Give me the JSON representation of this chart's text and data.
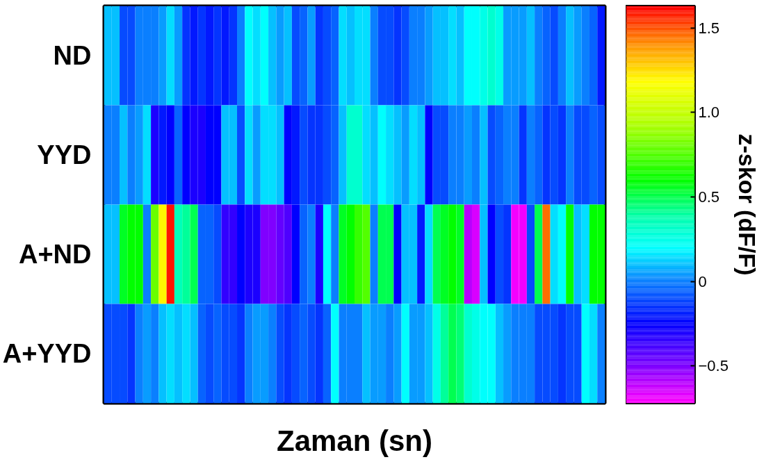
{
  "chart_data": {
    "type": "heatmap",
    "xlabel": "Zaman (sn)",
    "clabel": "z-skor (dF/F)",
    "categories": [
      null,
      null,
      null,
      null,
      null,
      null,
      null,
      null,
      null,
      null,
      null,
      null,
      null,
      null,
      null,
      null,
      null,
      null,
      null,
      null,
      null,
      null,
      null,
      null,
      null,
      null,
      null,
      null,
      null,
      null,
      null,
      null,
      null,
      null,
      null,
      null,
      null,
      null,
      null,
      null,
      null,
      null,
      null,
      null,
      null,
      null,
      null,
      null,
      null,
      null,
      null,
      null,
      null,
      null,
      null,
      null,
      null,
      null,
      null,
      null,
      null,
      null,
      null,
      null
    ],
    "y_categories": [
      "ND",
      "YYD",
      "A+ND",
      "A+YYD"
    ],
    "cells": [
      [
        0.1,
        0.1,
        -0.1,
        -0.1,
        0,
        0,
        0,
        0.05,
        0.15,
        0.05,
        -0.15,
        -0.2,
        -0.15,
        -0.2,
        -0.15,
        -0.2,
        -0.15,
        0,
        0.2,
        0.15,
        0.2,
        0.1,
        0.05,
        0.1,
        -0.1,
        -0.05,
        0.05,
        -0.15,
        -0.1,
        -0.05,
        0.15,
        0.1,
        0.15,
        0.15,
        0,
        -0.1,
        -0.1,
        -0.15,
        -0.1,
        0,
        0,
        0.05,
        0.1,
        0.1,
        0.15,
        0.1,
        0.2,
        0.2,
        0.25,
        0.3,
        0.25,
        0.05,
        0.05,
        0.05,
        0.1,
        0,
        -0.05,
        -0.1,
        0,
        0.1,
        0.05,
        0,
        -0.05,
        -0.2
      ],
      [
        0,
        0,
        0.1,
        0,
        0.05,
        0.15,
        -0.3,
        -0.2,
        -0.25,
        -0.05,
        -0.25,
        -0.3,
        -0.3,
        -0.25,
        -0.25,
        0.1,
        0.1,
        -0.1,
        0.15,
        0.05,
        0.15,
        0.15,
        0.1,
        -0.25,
        -0.2,
        -0.1,
        -0.15,
        -0.15,
        -0.1,
        -0.05,
        0.1,
        0.3,
        0.3,
        0.15,
        0.1,
        0.2,
        0.15,
        0.1,
        0.05,
        0.15,
        0.1,
        -0.25,
        -0.1,
        -0.1,
        0,
        0,
        0.05,
        0,
        0.1,
        -0.1,
        -0.05,
        0,
        0,
        -0.15,
        0,
        -0.05,
        -0.15,
        -0.1,
        -0.15,
        0,
        -0.1,
        -0.1,
        -0.05,
        -0.1
      ],
      [
        0.1,
        0.1,
        0.55,
        0.6,
        0.6,
        0,
        0.8,
        1.2,
        1.6,
        0.35,
        0.4,
        0.5,
        -0.05,
        -0.05,
        -0.1,
        -0.35,
        -0.35,
        -0.25,
        -0.3,
        -0.3,
        -0.5,
        -0.5,
        -0.45,
        -0.4,
        -0.25,
        -0.05,
        0,
        -0.3,
        0.2,
        0,
        0.55,
        0.6,
        0.7,
        0.75,
        0,
        0.5,
        0.5,
        -0.25,
        0.1,
        0.1,
        -0.2,
        0.15,
        0.5,
        0.55,
        0.6,
        0.55,
        -0.6,
        -0.65,
        0.1,
        -0.25,
        -0.1,
        -0.15,
        -0.7,
        -0.7,
        -0.1,
        0.5,
        1.45,
        0.15,
        0.2,
        0.6,
        0.1,
        0.15,
        0.6,
        0.6
      ],
      [
        -0.1,
        -0.1,
        -0.1,
        -0.15,
        0,
        0.05,
        0,
        0.1,
        0.15,
        0.1,
        0.15,
        0.1,
        -0.05,
        -0.1,
        -0.05,
        -0.1,
        -0.1,
        -0.15,
        0,
        0.05,
        0.05,
        0,
        -0.1,
        -0.15,
        -0.1,
        -0.05,
        -0.1,
        -0.15,
        -0.05,
        0.2,
        0,
        0,
        0,
        0.1,
        0.05,
        0.05,
        0,
        0.05,
        0.2,
        0.05,
        0.05,
        0.1,
        0.25,
        0.4,
        0.5,
        0.45,
        0.3,
        0.25,
        0.2,
        0.2,
        0.1,
        0.05,
        0,
        0,
        0,
        -0.1,
        -0.1,
        -0.1,
        -0.15,
        -0.1,
        -0.1,
        0.2,
        0.15,
        0
      ]
    ],
    "clim": [
      -0.72,
      1.63
    ],
    "cticks": [
      1.5,
      {
        "value": 1.0,
        "label": "1.0"
      },
      0.5,
      0,
      -0.5
    ]
  }
}
